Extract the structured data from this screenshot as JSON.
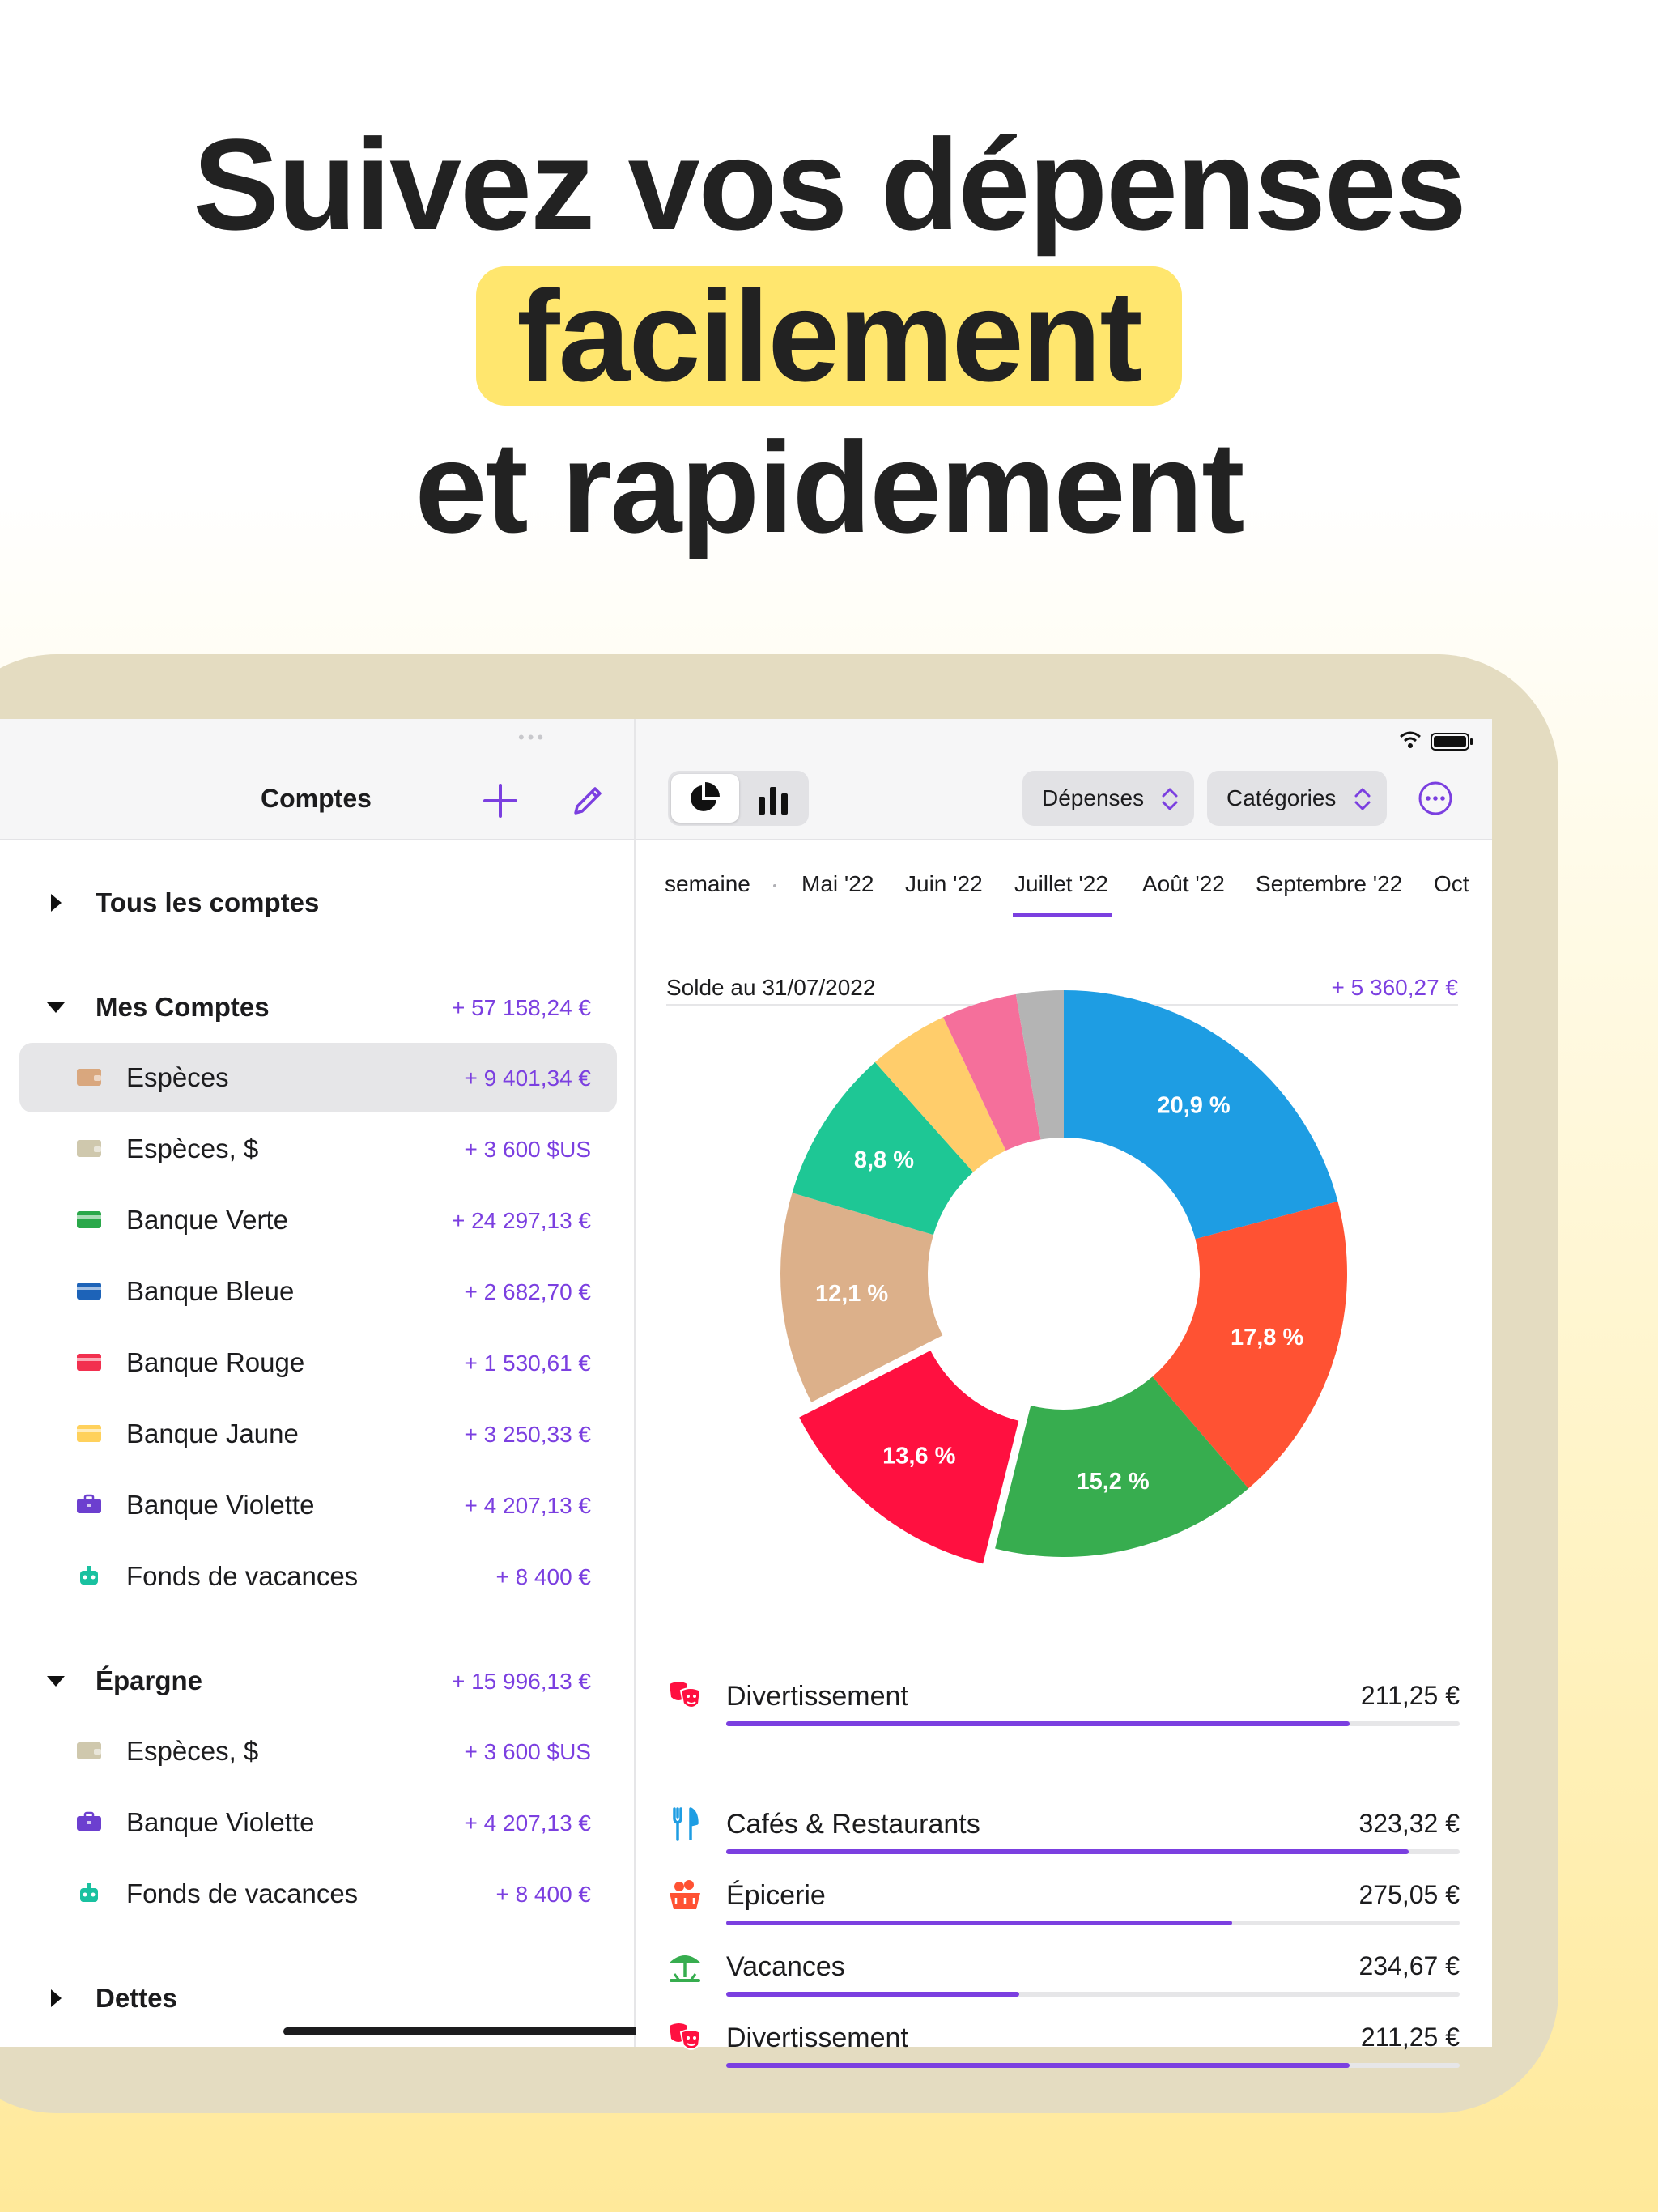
{
  "headline": {
    "line1": "Suivez vos dépenses",
    "highlight": "facilement",
    "line3": "et rapidement"
  },
  "colors": {
    "accent": "#7b3fe0",
    "highlight": "#ffe66e"
  },
  "sidebar": {
    "title": "Comptes",
    "groups": [
      {
        "label": "Tous les comptes",
        "expanded": false
      },
      {
        "label": "Mes Comptes",
        "total": "+ 57 158,24 €",
        "expanded": true,
        "items": [
          {
            "label": "Espèces",
            "amount": "+ 9 401,34 €",
            "icon": "wallet-icon",
            "color": "#d9a77e",
            "selected": true
          },
          {
            "label": "Espèces, $",
            "amount": "+ 3 600 $US",
            "icon": "wallet-icon",
            "color": "#cfc8ad"
          },
          {
            "label": "Banque Verte",
            "amount": "+ 24 297,13 €",
            "icon": "card-icon",
            "color": "#2aa84a"
          },
          {
            "label": "Banque Bleue",
            "amount": "+ 2 682,70 €",
            "icon": "card-icon",
            "color": "#1d63b8"
          },
          {
            "label": "Banque Rouge",
            "amount": "+ 1 530,61 €",
            "icon": "card-icon",
            "color": "#f2304f"
          },
          {
            "label": "Banque Jaune",
            "amount": "+ 3 250,33 €",
            "icon": "card-icon",
            "color": "#ffd15c"
          },
          {
            "label": "Banque Violette",
            "amount": "+ 4 207,13 €",
            "icon": "briefcase-icon",
            "color": "#6c3fcf"
          },
          {
            "label": "Fonds de vacances",
            "amount": "+ 8 400 €",
            "icon": "robot-icon",
            "color": "#19c1a0"
          }
        ]
      },
      {
        "label": "Épargne",
        "total": "+ 15 996,13 €",
        "expanded": true,
        "items": [
          {
            "label": "Espèces, $",
            "amount": "+ 3 600 $US",
            "icon": "wallet-icon",
            "color": "#cfc8ad"
          },
          {
            "label": "Banque Violette",
            "amount": "+ 4 207,13 €",
            "icon": "briefcase-icon",
            "color": "#6c3fcf"
          },
          {
            "label": "Fonds de vacances",
            "amount": "+ 8 400 €",
            "icon": "robot-icon",
            "color": "#19c1a0"
          }
        ]
      },
      {
        "label": "Dettes",
        "expanded": false
      }
    ]
  },
  "toolbar": {
    "type_filter": "Dépenses",
    "group_filter": "Catégories"
  },
  "months": [
    "semaine",
    "Mai '22",
    "Juin '22",
    "Juillet '22",
    "Août '22",
    "Septembre '22",
    "Oct"
  ],
  "active_month": "Juillet '22",
  "balance": {
    "label": "Solde au 31/07/2022",
    "amount": "+ 5 360,27 €"
  },
  "chart_data": {
    "type": "pie",
    "style": "donut",
    "slices": [
      {
        "label": "20,9 %",
        "value": 20.9,
        "color": "#1e9de3"
      },
      {
        "label": "17,8 %",
        "value": 17.8,
        "color": "#ff5233"
      },
      {
        "label": "15,2 %",
        "value": 15.2,
        "color": "#37ad4f"
      },
      {
        "label": "13,6 %",
        "value": 13.6,
        "color": "#ff1040",
        "exploded": true
      },
      {
        "label": "12,1 %",
        "value": 12.1,
        "color": "#dcb08a"
      },
      {
        "label": "8,8 %",
        "value": 8.8,
        "color": "#1ec795"
      },
      {
        "label": "",
        "value": 4.6,
        "color": "#ffcd6b"
      },
      {
        "label": "",
        "value": 4.3,
        "color": "#f56f9b"
      },
      {
        "label": "",
        "value": 2.7,
        "color": "#b4b4b4"
      }
    ]
  },
  "categories": [
    {
      "name": "Divertissement",
      "amount": "211,25 €",
      "icon": "theater-masks-icon",
      "color": "#ff1040",
      "progress": 0.85
    },
    {
      "name": "Cafés & Restaurants",
      "amount": "323,32 €",
      "icon": "fork-knife-icon",
      "color": "#1e9de3",
      "progress": 0.93
    },
    {
      "name": "Épicerie",
      "amount": "275,05 €",
      "icon": "grocery-basket-icon",
      "color": "#ff5233",
      "progress": 0.69
    },
    {
      "name": "Vacances",
      "amount": "234,67 €",
      "icon": "beach-umbrella-icon",
      "color": "#37ad4f",
      "progress": 0.4
    },
    {
      "name": "Divertissement",
      "amount": "211,25 €",
      "icon": "theater-masks-icon",
      "color": "#ff1040",
      "progress": 0.85
    }
  ]
}
